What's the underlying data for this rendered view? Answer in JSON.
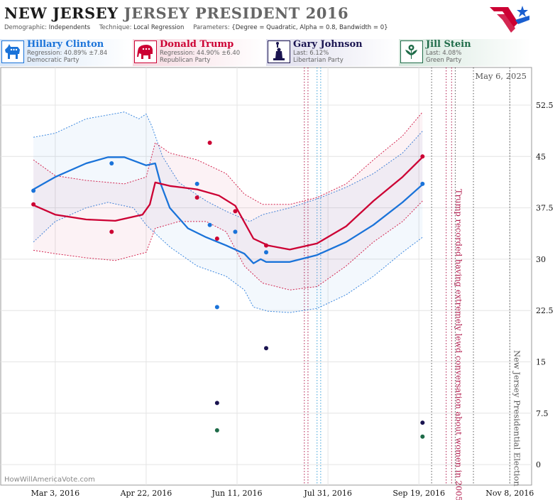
{
  "header": {
    "state": "NEW JERSEY",
    "race": "JERSEY PRESIDENT 2016",
    "demographic_label": "Demographic:",
    "demographic_value": "Independents",
    "technique_label": "Technique:",
    "technique_value": "Local Regression",
    "parameters_label": "Parameters:",
    "parameters_value": "{Degree = Quadratic, Alpha = 0.8, Bandwidth = 0}"
  },
  "candidates": [
    {
      "name": "Hillary Clinton",
      "stat": "Regression: 40.89% ±7.84",
      "party": "Democratic Party",
      "color": "#1a73d9",
      "icon": "donkey-icon"
    },
    {
      "name": "Donald Trump",
      "stat": "Regression: 44.90% ±6.40",
      "party": "Republican Party",
      "color": "#cc0033",
      "icon": "elephant-icon"
    },
    {
      "name": "Gary Johnson",
      "stat": "Last: 6.12%",
      "party": "Libertarian Party",
      "color": "#1a1450",
      "icon": "liberty-statue-icon"
    },
    {
      "name": "Jill Stein",
      "stat": "Last: 4.08%",
      "party": "Green Party",
      "color": "#1e6b48",
      "icon": "flower-icon"
    }
  ],
  "chart_data": {
    "type": "line",
    "current_date_label": "May 6, 2025",
    "watermark": "HowWillAmericaVote.com",
    "x_ticks": [
      "Mar 3, 2016",
      "Apr 22, 2016",
      "Jun 11, 2016",
      "Jul 31, 2016",
      "Sep 19, 2016",
      "Nov 8, 2016"
    ],
    "y_ticks": [
      0,
      7.5,
      15,
      22.5,
      30,
      37.5,
      45,
      52.5
    ],
    "ylim": [
      -3,
      58
    ],
    "event_annotations": [
      {
        "date": "Oct 7, 2016",
        "text": "Trump recorded having extremely lewd conversation about women in 2005",
        "color": "#b0174a"
      },
      {
        "date": "Nov 8, 2016",
        "text": "New Jersey Presidential Election",
        "color": "#555555"
      }
    ],
    "series": [
      {
        "name": "Hillary Clinton",
        "color": "#1a73d9",
        "trend": [
          [
            "2016-02-20",
            40.2
          ],
          [
            "2016-03-03",
            42.0
          ],
          [
            "2016-03-20",
            44.0
          ],
          [
            "2016-04-01",
            44.9
          ],
          [
            "2016-04-10",
            44.9
          ],
          [
            "2016-04-22",
            43.7
          ],
          [
            "2016-04-27",
            44.0
          ],
          [
            "2016-04-30",
            41.0
          ],
          [
            "2016-05-05",
            37.5
          ],
          [
            "2016-05-15",
            34.5
          ],
          [
            "2016-05-25",
            33.2
          ],
          [
            "2016-06-05",
            32.0
          ],
          [
            "2016-06-15",
            30.8
          ],
          [
            "2016-06-20",
            29.4
          ],
          [
            "2016-06-24",
            30.0
          ],
          [
            "2016-06-27",
            29.6
          ],
          [
            "2016-07-10",
            29.6
          ],
          [
            "2016-07-25",
            30.6
          ],
          [
            "2016-08-10",
            32.5
          ],
          [
            "2016-08-25",
            35.0
          ],
          [
            "2016-09-10",
            38.3
          ],
          [
            "2016-09-21",
            40.9
          ]
        ],
        "band_upper": [
          [
            "2016-02-20",
            47.8
          ],
          [
            "2016-03-03",
            48.4
          ],
          [
            "2016-03-20",
            50.5
          ],
          [
            "2016-04-10",
            51.5
          ],
          [
            "2016-04-18",
            50.5
          ],
          [
            "2016-04-22",
            51.2
          ],
          [
            "2016-04-25",
            49.5
          ],
          [
            "2016-05-01",
            45.0
          ],
          [
            "2016-05-10",
            41.2
          ],
          [
            "2016-05-25",
            38.5
          ],
          [
            "2016-06-05",
            37.0
          ],
          [
            "2016-06-18",
            35.5
          ],
          [
            "2016-06-25",
            36.5
          ],
          [
            "2016-07-10",
            37.5
          ],
          [
            "2016-07-25",
            38.8
          ],
          [
            "2016-08-10",
            40.5
          ],
          [
            "2016-08-25",
            42.5
          ],
          [
            "2016-09-10",
            45.5
          ],
          [
            "2016-09-21",
            48.7
          ]
        ],
        "band_lower": [
          [
            "2016-02-20",
            32.5
          ],
          [
            "2016-03-03",
            35.5
          ],
          [
            "2016-03-20",
            37.5
          ],
          [
            "2016-04-01",
            38.3
          ],
          [
            "2016-04-15",
            37.5
          ],
          [
            "2016-04-22",
            35.0
          ],
          [
            "2016-05-05",
            31.8
          ],
          [
            "2016-05-20",
            29.0
          ],
          [
            "2016-06-05",
            27.5
          ],
          [
            "2016-06-15",
            25.5
          ],
          [
            "2016-06-20",
            23.0
          ],
          [
            "2016-06-28",
            22.4
          ],
          [
            "2016-07-10",
            22.2
          ],
          [
            "2016-07-25",
            22.8
          ],
          [
            "2016-08-10",
            24.8
          ],
          [
            "2016-08-25",
            27.5
          ],
          [
            "2016-09-10",
            31.0
          ],
          [
            "2016-09-21",
            33.2
          ]
        ],
        "points": [
          [
            "2016-02-20",
            40.0
          ],
          [
            "2016-04-03",
            44.0
          ],
          [
            "2016-05-20",
            41.0
          ],
          [
            "2016-05-27",
            35.0
          ],
          [
            "2016-05-31",
            23.0
          ],
          [
            "2016-06-10",
            34.0
          ],
          [
            "2016-06-27",
            31.0
          ],
          [
            "2016-09-21",
            41.0
          ]
        ]
      },
      {
        "name": "Donald Trump",
        "color": "#cc0033",
        "trend": [
          [
            "2016-02-20",
            37.9
          ],
          [
            "2016-03-03",
            36.5
          ],
          [
            "2016-03-20",
            35.8
          ],
          [
            "2016-04-05",
            35.6
          ],
          [
            "2016-04-20",
            36.5
          ],
          [
            "2016-04-24",
            38.0
          ],
          [
            "2016-04-27",
            41.2
          ],
          [
            "2016-05-05",
            40.7
          ],
          [
            "2016-05-20",
            40.2
          ],
          [
            "2016-06-01",
            39.3
          ],
          [
            "2016-06-10",
            37.8
          ],
          [
            "2016-06-20",
            33.0
          ],
          [
            "2016-06-28",
            32.0
          ],
          [
            "2016-07-10",
            31.4
          ],
          [
            "2016-07-25",
            32.3
          ],
          [
            "2016-08-10",
            34.8
          ],
          [
            "2016-08-25",
            38.5
          ],
          [
            "2016-09-10",
            42.0
          ],
          [
            "2016-09-21",
            44.9
          ]
        ],
        "band_upper": [
          [
            "2016-02-20",
            44.5
          ],
          [
            "2016-03-03",
            42.2
          ],
          [
            "2016-03-20",
            41.5
          ],
          [
            "2016-04-10",
            41.0
          ],
          [
            "2016-04-22",
            42.0
          ],
          [
            "2016-04-27",
            47.0
          ],
          [
            "2016-05-05",
            45.5
          ],
          [
            "2016-05-20",
            44.5
          ],
          [
            "2016-06-05",
            42.5
          ],
          [
            "2016-06-15",
            39.5
          ],
          [
            "2016-06-25",
            38.0
          ],
          [
            "2016-07-10",
            38.0
          ],
          [
            "2016-07-25",
            39.0
          ],
          [
            "2016-08-10",
            41.0
          ],
          [
            "2016-08-25",
            44.5
          ],
          [
            "2016-09-10",
            48.0
          ],
          [
            "2016-09-21",
            51.5
          ]
        ],
        "band_lower": [
          [
            "2016-02-20",
            31.3
          ],
          [
            "2016-03-03",
            30.8
          ],
          [
            "2016-03-20",
            30.2
          ],
          [
            "2016-04-05",
            29.8
          ],
          [
            "2016-04-22",
            31.0
          ],
          [
            "2016-04-27",
            34.5
          ],
          [
            "2016-05-10",
            35.5
          ],
          [
            "2016-05-25",
            35.5
          ],
          [
            "2016-06-05",
            34.0
          ],
          [
            "2016-06-15",
            29.0
          ],
          [
            "2016-06-25",
            26.5
          ],
          [
            "2016-07-10",
            25.5
          ],
          [
            "2016-07-25",
            26.0
          ],
          [
            "2016-08-10",
            29.0
          ],
          [
            "2016-08-25",
            32.5
          ],
          [
            "2016-09-10",
            35.5
          ],
          [
            "2016-09-21",
            38.5
          ]
        ],
        "points": [
          [
            "2016-02-20",
            38.0
          ],
          [
            "2016-04-03",
            34.0
          ],
          [
            "2016-05-20",
            39.0
          ],
          [
            "2016-05-27",
            47.0
          ],
          [
            "2016-05-31",
            33.0
          ],
          [
            "2016-06-10",
            37.0
          ],
          [
            "2016-06-27",
            32.0
          ],
          [
            "2016-09-21",
            45.0
          ]
        ]
      },
      {
        "name": "Gary Johnson",
        "color": "#1a1450",
        "points": [
          [
            "2016-05-31",
            9.0
          ],
          [
            "2016-06-27",
            17.0
          ],
          [
            "2016-09-21",
            6.12
          ]
        ]
      },
      {
        "name": "Jill Stein",
        "color": "#1e6b48",
        "points": [
          [
            "2016-05-31",
            5.0
          ],
          [
            "2016-09-21",
            4.08
          ]
        ]
      }
    ]
  }
}
